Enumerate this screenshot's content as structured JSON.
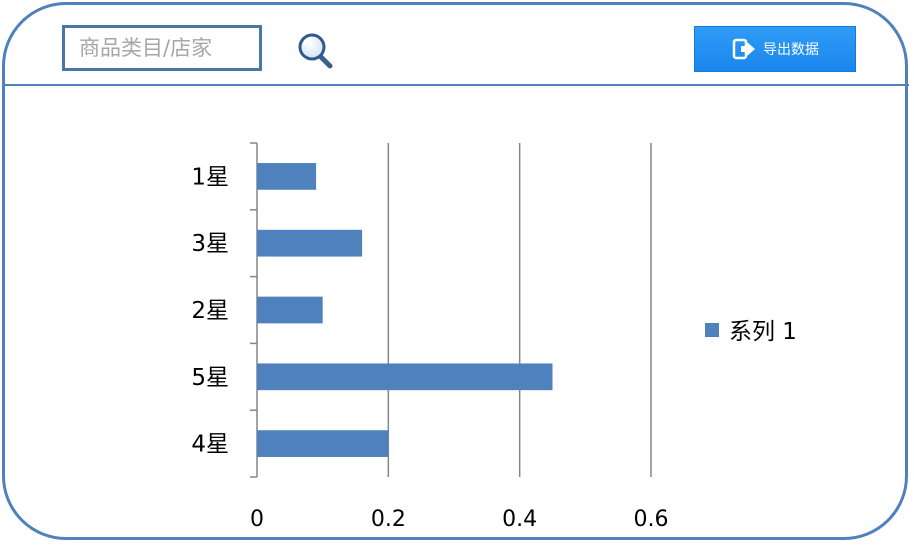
{
  "header": {
    "search_placeholder": "商品类目/店家",
    "search_icon": "magnifier-icon",
    "export_label": "导出数据",
    "export_icon": "export-icon"
  },
  "colors": {
    "accent": "#4f81bd",
    "button": "#1a86ee",
    "bar": "#4f81bd"
  },
  "chart_data": {
    "type": "bar",
    "orientation": "horizontal",
    "categories": [
      "1星",
      "3星",
      "2星",
      "5星",
      "4星"
    ],
    "series": [
      {
        "name": "系列 1",
        "values": [
          0.09,
          0.16,
          0.1,
          0.45,
          0.2
        ]
      }
    ],
    "xlim": [
      0,
      0.6
    ],
    "xticks": [
      "0",
      "0.2",
      "0.4",
      "0.6"
    ],
    "grid": "vertical",
    "legend": "right"
  }
}
